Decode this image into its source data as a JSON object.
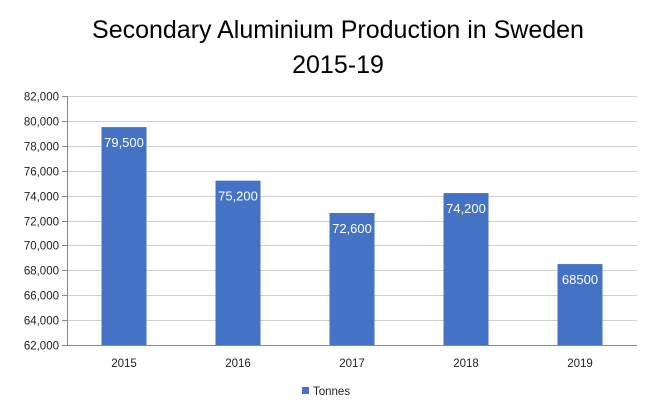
{
  "chart_data": {
    "type": "bar",
    "title": [
      "Secondary Aluminium Production in Sweden",
      "2015-19"
    ],
    "categories": [
      "2015",
      "2016",
      "2017",
      "2018",
      "2019"
    ],
    "series": [
      {
        "name": "Tonnes",
        "values": [
          79500,
          75200,
          72600,
          74200,
          68500
        ],
        "color": "#4472C4"
      }
    ],
    "data_labels": [
      "79,500",
      "75,200",
      "72,600",
      "74,200",
      "68500"
    ],
    "ylim": [
      62000,
      82000
    ],
    "yticks": [
      "62,000",
      "64,000",
      "66,000",
      "68,000",
      "70,000",
      "72,000",
      "74,000",
      "76,000",
      "78,000",
      "80,000",
      "82,000"
    ],
    "grid": true,
    "legend_position": "bottom",
    "xlabel": "",
    "ylabel": ""
  }
}
